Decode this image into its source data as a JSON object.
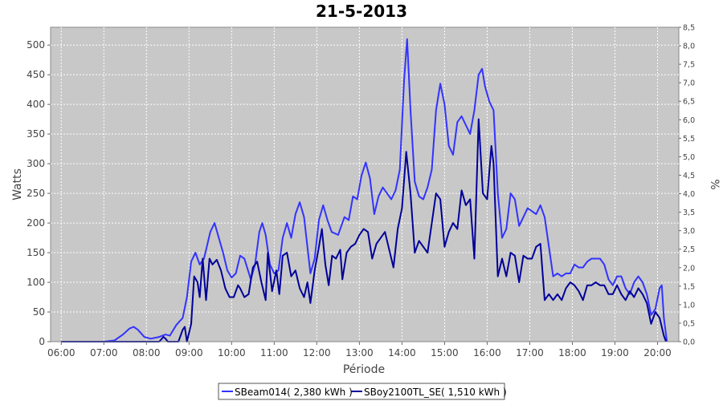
{
  "chart_data": {
    "type": "line",
    "title": "21-5-2013",
    "xlabel": "Période",
    "ylabel": "Watts",
    "ylabel_right": "%",
    "xlim": [
      5.75,
      20.5
    ],
    "ylim": [
      0,
      530
    ],
    "ylim_right": [
      0,
      8.5
    ],
    "grid": true,
    "legend_position": "bottom-center",
    "x_ticks": [
      {
        "v": 6,
        "label": "06:00"
      },
      {
        "v": 7,
        "label": "07:00"
      },
      {
        "v": 8,
        "label": "08:00"
      },
      {
        "v": 9,
        "label": "09:00"
      },
      {
        "v": 10,
        "label": "10:00"
      },
      {
        "v": 11,
        "label": "11:00"
      },
      {
        "v": 12,
        "label": "12:00"
      },
      {
        "v": 13,
        "label": "13:00"
      },
      {
        "v": 14,
        "label": "14:00"
      },
      {
        "v": 15,
        "label": "15:00"
      },
      {
        "v": 16,
        "label": "16:00"
      },
      {
        "v": 17,
        "label": "17:00"
      },
      {
        "v": 18,
        "label": "18:00"
      },
      {
        "v": 19,
        "label": "19:00"
      },
      {
        "v": 20,
        "label": "20:00"
      }
    ],
    "y_ticks": [
      0,
      50,
      100,
      150,
      200,
      250,
      300,
      350,
      400,
      450,
      500
    ],
    "y_ticks_right": [
      {
        "v": 0,
        "label": "0,0"
      },
      {
        "v": 0.5,
        "label": "0,5"
      },
      {
        "v": 1,
        "label": "1,0"
      },
      {
        "v": 1.5,
        "label": "1,5"
      },
      {
        "v": 2,
        "label": "2,0"
      },
      {
        "v": 2.5,
        "label": "2,5"
      },
      {
        "v": 3,
        "label": "3,0"
      },
      {
        "v": 3.5,
        "label": "3,5"
      },
      {
        "v": 4,
        "label": "4,0"
      },
      {
        "v": 4.5,
        "label": "4,5"
      },
      {
        "v": 5,
        "label": "5,0"
      },
      {
        "v": 5.5,
        "label": "5,5"
      },
      {
        "v": 6,
        "label": "6,0"
      },
      {
        "v": 6.5,
        "label": "6,5"
      },
      {
        "v": 7,
        "label": "7,0"
      },
      {
        "v": 7.5,
        "label": "7,5"
      },
      {
        "v": 8,
        "label": "8,0"
      },
      {
        "v": 8.5,
        "label": "8,5"
      }
    ],
    "series": [
      {
        "name": "SBeam014( 2,380 kWh )",
        "color": "#3333ff",
        "points": [
          [
            6.0,
            0
          ],
          [
            7.0,
            0
          ],
          [
            7.25,
            2
          ],
          [
            7.45,
            12
          ],
          [
            7.6,
            22
          ],
          [
            7.7,
            25
          ],
          [
            7.8,
            20
          ],
          [
            7.95,
            8
          ],
          [
            8.1,
            5
          ],
          [
            8.3,
            8
          ],
          [
            8.45,
            12
          ],
          [
            8.55,
            10
          ],
          [
            8.7,
            28
          ],
          [
            8.85,
            40
          ],
          [
            8.95,
            75
          ],
          [
            9.05,
            135
          ],
          [
            9.15,
            150
          ],
          [
            9.25,
            130
          ],
          [
            9.35,
            140
          ],
          [
            9.5,
            185
          ],
          [
            9.6,
            200
          ],
          [
            9.7,
            175
          ],
          [
            9.8,
            150
          ],
          [
            9.9,
            120
          ],
          [
            10.0,
            108
          ],
          [
            10.1,
            115
          ],
          [
            10.2,
            145
          ],
          [
            10.3,
            140
          ],
          [
            10.45,
            105
          ],
          [
            10.55,
            130
          ],
          [
            10.65,
            185
          ],
          [
            10.72,
            200
          ],
          [
            10.8,
            180
          ],
          [
            10.9,
            130
          ],
          [
            11.0,
            115
          ],
          [
            11.1,
            120
          ],
          [
            11.2,
            175
          ],
          [
            11.3,
            200
          ],
          [
            11.4,
            175
          ],
          [
            11.5,
            215
          ],
          [
            11.6,
            235
          ],
          [
            11.7,
            210
          ],
          [
            11.85,
            115
          ],
          [
            11.95,
            140
          ],
          [
            12.05,
            205
          ],
          [
            12.15,
            230
          ],
          [
            12.25,
            205
          ],
          [
            12.35,
            185
          ],
          [
            12.5,
            180
          ],
          [
            12.65,
            210
          ],
          [
            12.75,
            205
          ],
          [
            12.85,
            245
          ],
          [
            12.95,
            240
          ],
          [
            13.05,
            280
          ],
          [
            13.15,
            302
          ],
          [
            13.25,
            275
          ],
          [
            13.35,
            215
          ],
          [
            13.45,
            245
          ],
          [
            13.55,
            260
          ],
          [
            13.65,
            250
          ],
          [
            13.75,
            240
          ],
          [
            13.85,
            255
          ],
          [
            13.95,
            290
          ],
          [
            14.05,
            440
          ],
          [
            14.12,
            510
          ],
          [
            14.2,
            390
          ],
          [
            14.3,
            270
          ],
          [
            14.4,
            245
          ],
          [
            14.5,
            240
          ],
          [
            14.6,
            260
          ],
          [
            14.7,
            290
          ],
          [
            14.8,
            390
          ],
          [
            14.9,
            435
          ],
          [
            15.0,
            400
          ],
          [
            15.1,
            330
          ],
          [
            15.2,
            315
          ],
          [
            15.3,
            370
          ],
          [
            15.4,
            380
          ],
          [
            15.5,
            365
          ],
          [
            15.6,
            350
          ],
          [
            15.7,
            390
          ],
          [
            15.8,
            450
          ],
          [
            15.88,
            460
          ],
          [
            15.95,
            430
          ],
          [
            16.05,
            405
          ],
          [
            16.15,
            390
          ],
          [
            16.25,
            250
          ],
          [
            16.35,
            175
          ],
          [
            16.45,
            190
          ],
          [
            16.55,
            250
          ],
          [
            16.65,
            240
          ],
          [
            16.75,
            195
          ],
          [
            16.85,
            210
          ],
          [
            16.95,
            225
          ],
          [
            17.05,
            220
          ],
          [
            17.15,
            215
          ],
          [
            17.25,
            230
          ],
          [
            17.35,
            210
          ],
          [
            17.45,
            160
          ],
          [
            17.55,
            110
          ],
          [
            17.65,
            115
          ],
          [
            17.75,
            110
          ],
          [
            17.85,
            115
          ],
          [
            17.95,
            115
          ],
          [
            18.05,
            130
          ],
          [
            18.15,
            125
          ],
          [
            18.25,
            125
          ],
          [
            18.35,
            135
          ],
          [
            18.45,
            140
          ],
          [
            18.55,
            140
          ],
          [
            18.65,
            140
          ],
          [
            18.75,
            130
          ],
          [
            18.85,
            105
          ],
          [
            18.95,
            95
          ],
          [
            19.05,
            110
          ],
          [
            19.15,
            110
          ],
          [
            19.25,
            90
          ],
          [
            19.35,
            80
          ],
          [
            19.45,
            100
          ],
          [
            19.55,
            110
          ],
          [
            19.65,
            100
          ],
          [
            19.75,
            80
          ],
          [
            19.85,
            45
          ],
          [
            19.95,
            55
          ],
          [
            20.05,
            90
          ],
          [
            20.1,
            95
          ],
          [
            20.15,
            40
          ],
          [
            20.22,
            0
          ]
        ]
      },
      {
        "name": "SBoy2100TL_SE( 1,510 kWh )",
        "color": "#000099",
        "points": [
          [
            6.0,
            0
          ],
          [
            8.3,
            0
          ],
          [
            8.4,
            8
          ],
          [
            8.45,
            5
          ],
          [
            8.5,
            0
          ],
          [
            8.75,
            0
          ],
          [
            8.85,
            20
          ],
          [
            8.9,
            25
          ],
          [
            8.95,
            0
          ],
          [
            9.05,
            30
          ],
          [
            9.12,
            110
          ],
          [
            9.2,
            100
          ],
          [
            9.25,
            75
          ],
          [
            9.32,
            140
          ],
          [
            9.4,
            70
          ],
          [
            9.48,
            140
          ],
          [
            9.55,
            130
          ],
          [
            9.65,
            138
          ],
          [
            9.75,
            120
          ],
          [
            9.85,
            90
          ],
          [
            9.95,
            75
          ],
          [
            10.05,
            75
          ],
          [
            10.15,
            95
          ],
          [
            10.2,
            90
          ],
          [
            10.3,
            75
          ],
          [
            10.4,
            80
          ],
          [
            10.5,
            125
          ],
          [
            10.6,
            135
          ],
          [
            10.7,
            100
          ],
          [
            10.8,
            70
          ],
          [
            10.85,
            150
          ],
          [
            10.95,
            85
          ],
          [
            11.05,
            120
          ],
          [
            11.12,
            80
          ],
          [
            11.2,
            145
          ],
          [
            11.3,
            150
          ],
          [
            11.4,
            110
          ],
          [
            11.5,
            120
          ],
          [
            11.6,
            90
          ],
          [
            11.7,
            75
          ],
          [
            11.78,
            100
          ],
          [
            11.85,
            65
          ],
          [
            11.95,
            120
          ],
          [
            12.05,
            160
          ],
          [
            12.12,
            190
          ],
          [
            12.2,
            130
          ],
          [
            12.28,
            95
          ],
          [
            12.36,
            145
          ],
          [
            12.45,
            140
          ],
          [
            12.55,
            155
          ],
          [
            12.6,
            105
          ],
          [
            12.7,
            150
          ],
          [
            12.8,
            160
          ],
          [
            12.9,
            165
          ],
          [
            13.0,
            180
          ],
          [
            13.1,
            190
          ],
          [
            13.2,
            185
          ],
          [
            13.3,
            140
          ],
          [
            13.4,
            165
          ],
          [
            13.5,
            175
          ],
          [
            13.6,
            185
          ],
          [
            13.7,
            155
          ],
          [
            13.8,
            125
          ],
          [
            13.9,
            190
          ],
          [
            14.0,
            225
          ],
          [
            14.1,
            320
          ],
          [
            14.2,
            250
          ],
          [
            14.3,
            150
          ],
          [
            14.4,
            170
          ],
          [
            14.5,
            160
          ],
          [
            14.6,
            150
          ],
          [
            14.7,
            200
          ],
          [
            14.8,
            250
          ],
          [
            14.9,
            240
          ],
          [
            15.0,
            160
          ],
          [
            15.1,
            185
          ],
          [
            15.2,
            200
          ],
          [
            15.3,
            190
          ],
          [
            15.4,
            255
          ],
          [
            15.5,
            230
          ],
          [
            15.6,
            240
          ],
          [
            15.7,
            140
          ],
          [
            15.8,
            375
          ],
          [
            15.9,
            250
          ],
          [
            16.0,
            240
          ],
          [
            16.1,
            330
          ],
          [
            16.15,
            300
          ],
          [
            16.25,
            110
          ],
          [
            16.35,
            140
          ],
          [
            16.45,
            110
          ],
          [
            16.55,
            150
          ],
          [
            16.65,
            145
          ],
          [
            16.75,
            100
          ],
          [
            16.85,
            145
          ],
          [
            16.95,
            140
          ],
          [
            17.05,
            140
          ],
          [
            17.15,
            160
          ],
          [
            17.25,
            165
          ],
          [
            17.35,
            70
          ],
          [
            17.45,
            80
          ],
          [
            17.55,
            70
          ],
          [
            17.65,
            80
          ],
          [
            17.75,
            70
          ],
          [
            17.85,
            90
          ],
          [
            17.95,
            100
          ],
          [
            18.05,
            95
          ],
          [
            18.15,
            85
          ],
          [
            18.25,
            70
          ],
          [
            18.35,
            95
          ],
          [
            18.45,
            95
          ],
          [
            18.55,
            100
          ],
          [
            18.65,
            95
          ],
          [
            18.75,
            95
          ],
          [
            18.85,
            80
          ],
          [
            18.95,
            80
          ],
          [
            19.05,
            95
          ],
          [
            19.15,
            80
          ],
          [
            19.25,
            70
          ],
          [
            19.35,
            85
          ],
          [
            19.45,
            75
          ],
          [
            19.55,
            90
          ],
          [
            19.65,
            80
          ],
          [
            19.75,
            65
          ],
          [
            19.85,
            30
          ],
          [
            19.95,
            50
          ],
          [
            20.05,
            40
          ],
          [
            20.15,
            10
          ],
          [
            20.2,
            0
          ]
        ]
      }
    ]
  }
}
